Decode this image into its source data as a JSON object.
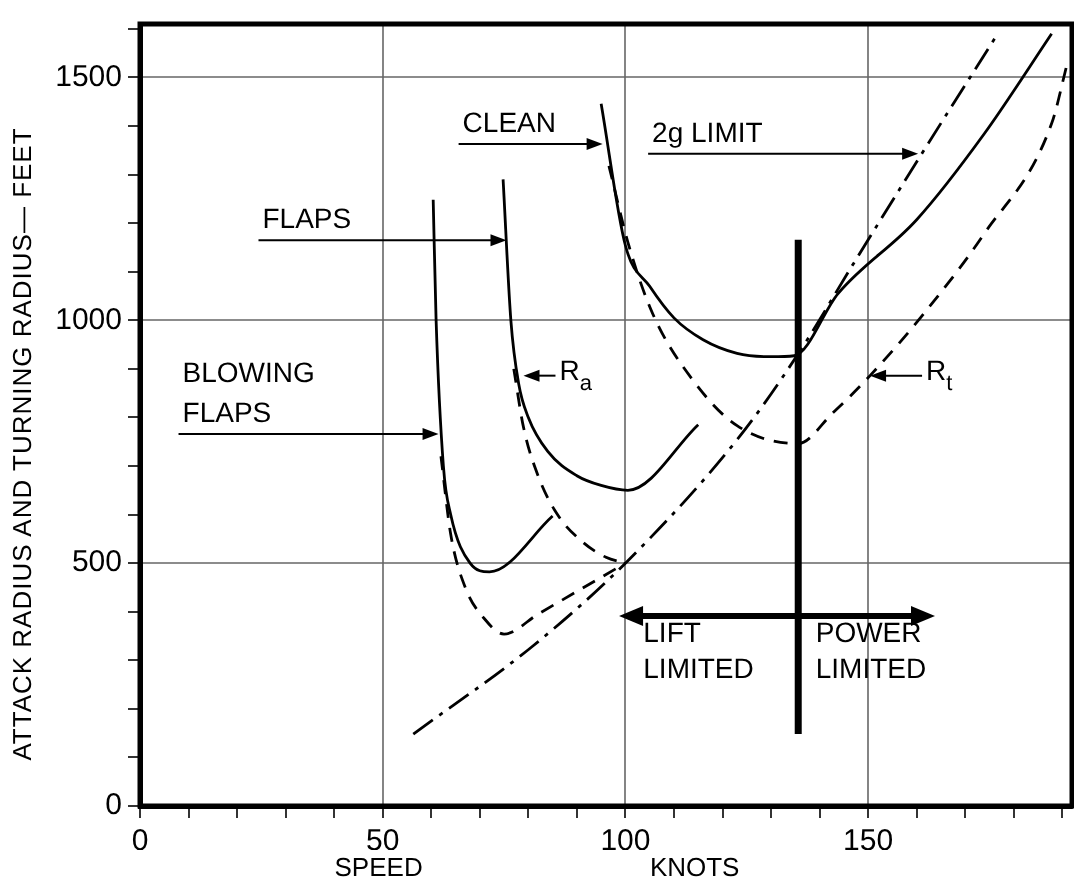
{
  "chart_data": {
    "type": "line",
    "xlabel": "SPEED KNOTS",
    "ylabel": "ATTACK RADIUS AND TURNING RADIUS— FEET",
    "xlim": [
      0,
      192
    ],
    "ylim": [
      0,
      1610
    ],
    "xticks": [
      0,
      {
        "value": 10,
        "label": null
      },
      {
        "value": 20,
        "label": null
      },
      {
        "value": 30,
        "label": null
      },
      {
        "value": 40,
        "label": null
      },
      50,
      {
        "value": 60,
        "label": null
      },
      {
        "value": 70,
        "label": null
      },
      {
        "value": 80,
        "label": null
      },
      {
        "value": 90,
        "label": null
      },
      100,
      {
        "value": 110,
        "label": null
      },
      {
        "value": 120,
        "label": null
      },
      {
        "value": 130,
        "label": null
      },
      {
        "value": 140,
        "label": null
      },
      150,
      {
        "value": 160,
        "label": null
      },
      {
        "value": 170,
        "label": null
      },
      {
        "value": 180,
        "label": null
      },
      {
        "value": 190,
        "label": null
      }
    ],
    "yticks": [
      0,
      {
        "value": 100,
        "label": null
      },
      {
        "value": 200,
        "label": null
      },
      {
        "value": 300,
        "label": null
      },
      {
        "value": 400,
        "label": null
      },
      500,
      {
        "value": 600,
        "label": null
      },
      {
        "value": 700,
        "label": null
      },
      {
        "value": 800,
        "label": null
      },
      {
        "value": 900,
        "label": null
      },
      1000,
      {
        "value": 1100,
        "label": null
      },
      {
        "value": 1200,
        "label": null
      },
      {
        "value": 1300,
        "label": null
      },
      {
        "value": 1400,
        "label": null
      },
      1500,
      {
        "value": 1600,
        "label": null
      }
    ],
    "grid": true,
    "legend": false,
    "marker": "none",
    "series": [
      {
        "color": "#000000",
        "line_style": "solid",
        "x": [
          60.4,
          61,
          62.5,
          64,
          68,
          72,
          85
        ],
        "values": [
          1248,
          1000,
          700,
          600,
          500,
          482,
          597
        ]
      },
      {
        "color": "#000000",
        "line_style": "dashed",
        "x": [
          62,
          64,
          67,
          71,
          75,
          82,
          100
        ],
        "values": [
          720,
          560,
          450,
          385,
          354,
          395,
          500
        ]
      },
      {
        "color": "#000000",
        "line_style": "solid",
        "x": [
          74.8,
          76.4,
          78,
          80,
          84,
          90,
          95,
          100.5,
          115
        ],
        "values": [
          1290,
          1000,
          870,
          800,
          730,
          680,
          660,
          650,
          785
        ]
      },
      {
        "color": "#000000",
        "line_style": "dashed",
        "x": [
          77,
          79,
          82,
          86,
          91,
          96,
          100
        ],
        "values": [
          900,
          780,
          680,
          600,
          545,
          512,
          500
        ]
      },
      {
        "color": "#000000",
        "line_style": "solid",
        "x": [
          95,
          100,
          105,
          110,
          116,
          123,
          130,
          134.8,
          143.8,
          160,
          174,
          187.8
        ],
        "values": [
          1446,
          1154,
          1070,
          1005,
          960,
          932,
          925,
          927,
          1055,
          1207,
          1385,
          1590
        ]
      },
      {
        "color": "#000000",
        "line_style": "dashed",
        "x": [
          96.6,
          100.7,
          105.6,
          113.8,
          123,
          135.6,
          142.6,
          150.4,
          161.5,
          173.9,
          187.8,
          191
        ],
        "values": [
          1318,
          1154,
          1014,
          878,
          783,
          746,
          808,
          886,
          1014,
          1178,
          1405,
          1528
        ]
      },
      {
        "color": "#000000",
        "line_style": "dashdot",
        "x": [
          56.3,
          81,
          100,
          123,
          135.6,
          146.7,
          160.3,
          176.7
        ],
        "values": [
          148,
          330,
          500,
          754,
          931,
          1112,
          1331,
          1590
        ]
      },
      {
        "color": "#000000",
        "line_style": "solid",
        "x": [
          135.6,
          135.6
        ],
        "values": [
          148,
          1166
        ]
      }
    ],
    "annotations": [
      {
        "text": "CLEAN",
        "x": 95.3,
        "y": 1363
      },
      {
        "text": "2g LIMIT",
        "x": 160.3,
        "y": 1343
      },
      {
        "text": "FLAPS",
        "x": 75.5,
        "y": 1165
      },
      {
        "text": "BLOWING FLAPS",
        "x": 61.5,
        "y": 766
      },
      {
        "text": "R$_{a}$",
        "x": 79,
        "y": 886
      },
      {
        "text": "R$_{t}$",
        "x": 150.4,
        "y": 886
      },
      "LIFT LIMITED",
      "POWER LIMITED"
    ]
  }
}
